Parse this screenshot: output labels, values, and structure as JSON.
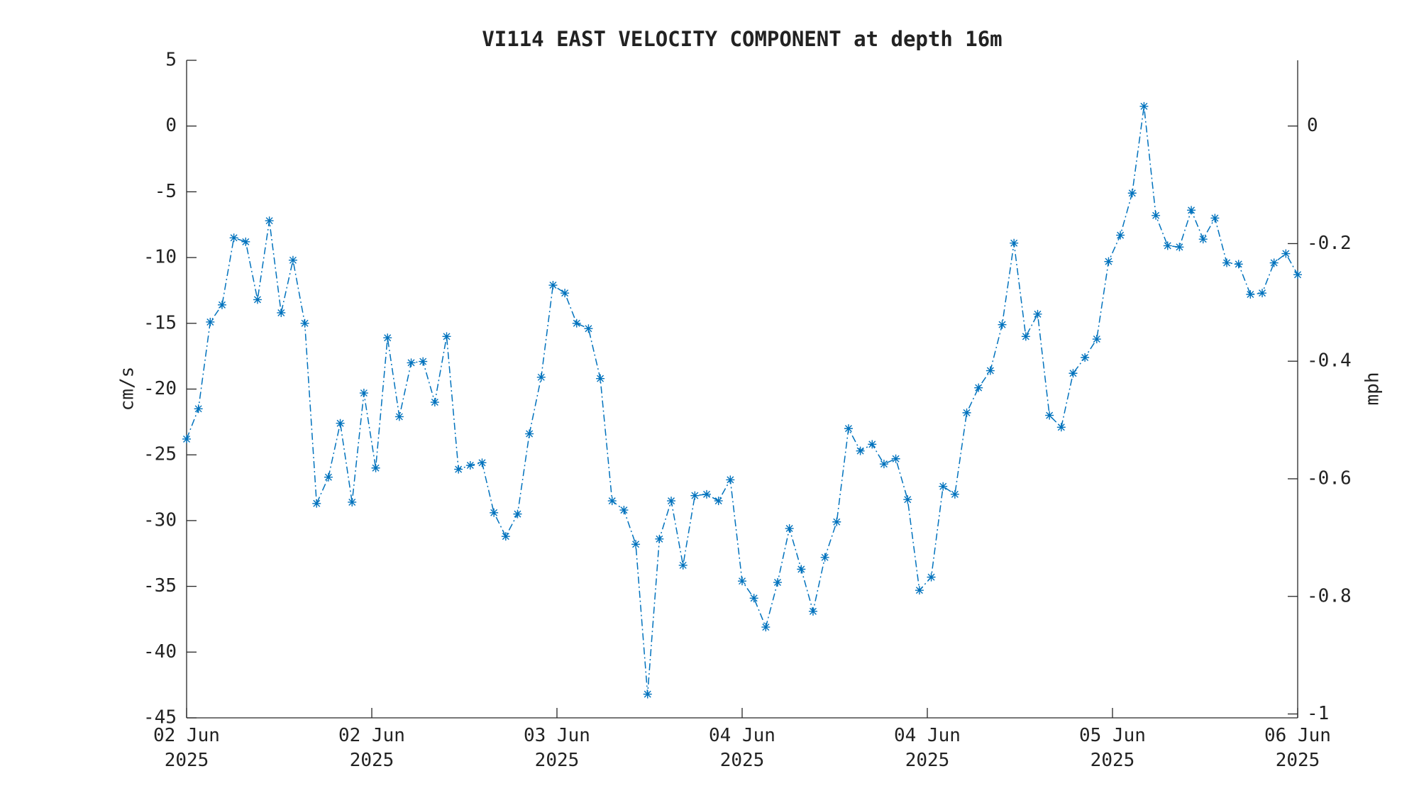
{
  "chart_data": {
    "type": "line",
    "title": "VI114 EAST VELOCITY COMPONENT at depth 16m",
    "ylabel": "cm/s",
    "y2label": "mph",
    "color": "#0072bd",
    "x": [
      0,
      1,
      2,
      3,
      4,
      5,
      6,
      7,
      8,
      9,
      10,
      11,
      12,
      13,
      14,
      15,
      16,
      17,
      18,
      19,
      20,
      21,
      22,
      23,
      24,
      25,
      26,
      27,
      28,
      29,
      30,
      31,
      32,
      33,
      34,
      35,
      36,
      37,
      38,
      39,
      40,
      41,
      42,
      43,
      44,
      45,
      46,
      47,
      48,
      49,
      50,
      51,
      52,
      53,
      54,
      55,
      56,
      57,
      58,
      59,
      60,
      61,
      62,
      63,
      64,
      65,
      66,
      67,
      68,
      69,
      70,
      71,
      72,
      73,
      74,
      75,
      76,
      77,
      78,
      79,
      80,
      81,
      82,
      83,
      84,
      85,
      86,
      87,
      88,
      89,
      90,
      91,
      92,
      93,
      94
    ],
    "values": [
      -23.8,
      -21.5,
      -14.9,
      -13.6,
      -8.5,
      -8.8,
      -13.2,
      -7.2,
      -14.2,
      -10.2,
      -15.0,
      -28.7,
      -26.7,
      -22.6,
      -28.6,
      -20.3,
      -26.0,
      -16.1,
      -22.1,
      -18.0,
      -17.9,
      -21.0,
      -16.0,
      -26.1,
      -25.8,
      -25.6,
      -29.4,
      -31.2,
      -29.5,
      -23.4,
      -19.1,
      -12.1,
      -12.7,
      -15.0,
      -15.4,
      -19.2,
      -28.5,
      -29.2,
      -31.8,
      -43.2,
      -31.4,
      -28.5,
      -33.4,
      -28.1,
      -28.0,
      -28.5,
      -26.9,
      -34.6,
      -35.9,
      -38.1,
      -34.7,
      -30.6,
      -33.7,
      -36.9,
      -32.8,
      -30.1,
      -23.0,
      -24.7,
      -24.2,
      -25.7,
      -25.3,
      -28.4,
      -35.3,
      -34.3,
      -27.4,
      -28.0,
      -21.8,
      -19.9,
      -18.6,
      -15.1,
      -8.9,
      -16.0,
      -14.3,
      -22.0,
      -22.9,
      -18.8,
      -17.6,
      -16.2,
      -10.3,
      -8.3,
      -5.1,
      1.5,
      -6.8,
      -9.1,
      -9.2,
      -6.4,
      -8.6,
      -7.0,
      -10.4,
      -10.5,
      -12.8,
      -12.7,
      -10.4,
      -9.7,
      -11.3
    ],
    "xlim": [
      0,
      94
    ],
    "xticks": [
      {
        "value": 0,
        "label": "02 Jun 2025"
      },
      {
        "value": 15.667,
        "label": "02 Jun 2025"
      },
      {
        "value": 31.333,
        "label": "03 Jun 2025"
      },
      {
        "value": 47,
        "label": "04 Jun 2025"
      },
      {
        "value": 62.667,
        "label": "04 Jun 2025"
      },
      {
        "value": 78.333,
        "label": "05 Jun 2025"
      },
      {
        "value": 94,
        "label": "06 Jun 2025"
      }
    ],
    "ylim": [
      -45,
      5
    ],
    "yticks": [
      -45,
      -40,
      -35,
      -30,
      -25,
      -20,
      -15,
      -10,
      -5,
      0,
      5
    ],
    "y2lim": [
      -1.0066,
      0.1118
    ],
    "y2ticks": [
      -1,
      -0.8,
      -0.6,
      -0.4,
      -0.2,
      0
    ]
  }
}
